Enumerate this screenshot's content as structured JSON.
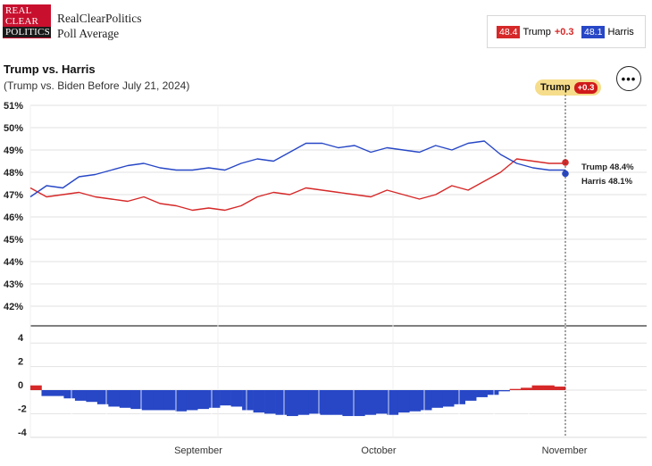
{
  "brand": {
    "logo_lines": [
      "REAL",
      "CLEAR",
      "POLITICS"
    ],
    "name": "RealClearPolitics",
    "tagline": "Poll Average"
  },
  "legend": [
    {
      "value": "48.4",
      "name": "Trump",
      "delta": "+0.3",
      "color": "#d62828"
    },
    {
      "value": "48.1",
      "name": "Harris",
      "delta": "",
      "color": "#2747c6"
    }
  ],
  "header": {
    "title": "Trump vs. Harris",
    "subtitle": "(Trump vs. Biden Before July 21, 2024)"
  },
  "menu": {
    "label": "•••"
  },
  "pill": {
    "leader": "Trump",
    "delta": "+0.3"
  },
  "chart_data": {
    "type": "line",
    "x_ticks": [
      "September",
      "October",
      "November"
    ],
    "ylim": [
      41,
      51
    ],
    "y_ticks": [
      "51%",
      "50%",
      "49%",
      "48%",
      "47%",
      "46%",
      "45%",
      "44%",
      "43%",
      "42%"
    ],
    "grid": true,
    "x": [
      0,
      3,
      6,
      9,
      12,
      15,
      18,
      21,
      24,
      27,
      30,
      33,
      36,
      39,
      42,
      45,
      48,
      51,
      54,
      57,
      60,
      63,
      66,
      69,
      72,
      75,
      78,
      81,
      84,
      87,
      90,
      93,
      96,
      99
    ],
    "series": [
      {
        "name": "Trump",
        "color": "#d62828",
        "values": [
          47.3,
          46.9,
          47.0,
          47.1,
          46.9,
          46.8,
          46.7,
          46.9,
          46.6,
          46.5,
          46.3,
          46.4,
          46.3,
          46.5,
          46.9,
          47.1,
          47.0,
          47.3,
          47.2,
          47.1,
          47.0,
          46.9,
          47.2,
          47.0,
          46.8,
          47.0,
          47.4,
          47.2,
          47.6,
          48.0,
          48.6,
          48.5,
          48.4,
          48.4
        ],
        "end_label": "Trump 48.4%"
      },
      {
        "name": "Harris",
        "color": "#2747c6",
        "values": [
          46.9,
          47.4,
          47.3,
          47.8,
          47.9,
          48.1,
          48.3,
          48.4,
          48.2,
          48.1,
          48.1,
          48.2,
          48.1,
          48.4,
          48.6,
          48.5,
          48.9,
          49.3,
          49.3,
          49.1,
          49.2,
          48.9,
          49.1,
          49.0,
          48.9,
          49.2,
          49.0,
          49.3,
          49.4,
          48.8,
          48.4,
          48.2,
          48.1,
          48.1
        ],
        "end_label": "Harris 48.1%"
      }
    ],
    "spread": {
      "type": "bar",
      "ylim": [
        -4,
        5
      ],
      "y_ticks": [
        "4",
        "2",
        "0",
        "-2",
        "-4"
      ],
      "values": [
        0.4,
        -0.5,
        -0.5,
        -0.7,
        -0.9,
        -1.0,
        -1.2,
        -1.4,
        -1.5,
        -1.6,
        -1.7,
        -1.7,
        -1.7,
        -1.8,
        -1.7,
        -1.6,
        -1.5,
        -1.3,
        -1.4,
        -1.7,
        -1.9,
        -2.0,
        -2.1,
        -2.2,
        -2.1,
        -2.0,
        -2.1,
        -2.1,
        -2.2,
        -2.2,
        -2.1,
        -2.0,
        -2.1,
        -1.9,
        -1.8,
        -1.7,
        -1.5,
        -1.4,
        -1.2,
        -0.9,
        -0.6,
        -0.4,
        -0.1,
        0.1,
        0.2,
        0.4,
        0.4,
        0.3
      ]
    }
  }
}
